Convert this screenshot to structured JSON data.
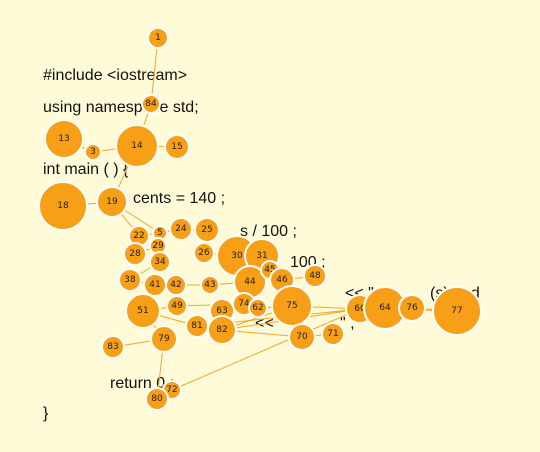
{
  "code_lines": [
    "#include <iostream>",
    "using namespace std;",
    "int main ( ) {",
    "cents = 140 ;",
    "s / 100 ;",
    "100 ;",
    "<< \" d",
    "(s) and",
    "<< \"",
    "\" ;",
    "return 0 ;",
    "}"
  ],
  "colors": {
    "background": "#fffbd9",
    "node_fill": "#f7a017",
    "node_stroke": "#ffffff",
    "edge": "#f5a623",
    "text": "#111111"
  },
  "nodes": [
    {
      "id": "1"
    },
    {
      "id": "84"
    },
    {
      "id": "13"
    },
    {
      "id": "3"
    },
    {
      "id": "14"
    },
    {
      "id": "15"
    },
    {
      "id": "18"
    },
    {
      "id": "19"
    },
    {
      "id": "22"
    },
    {
      "id": "5"
    },
    {
      "id": "24"
    },
    {
      "id": "25"
    },
    {
      "id": "28"
    },
    {
      "id": "29"
    },
    {
      "id": "26"
    },
    {
      "id": "30"
    },
    {
      "id": "31"
    },
    {
      "id": "34"
    },
    {
      "id": "38"
    },
    {
      "id": "41"
    },
    {
      "id": "42"
    },
    {
      "id": "43"
    },
    {
      "id": "44"
    },
    {
      "id": "45"
    },
    {
      "id": "46"
    },
    {
      "id": "48"
    },
    {
      "id": "51"
    },
    {
      "id": "49"
    },
    {
      "id": "74"
    },
    {
      "id": "63"
    },
    {
      "id": "62"
    },
    {
      "id": "75"
    },
    {
      "id": "60"
    },
    {
      "id": "64"
    },
    {
      "id": "76"
    },
    {
      "id": "77"
    },
    {
      "id": "81"
    },
    {
      "id": "82"
    },
    {
      "id": "70"
    },
    {
      "id": "71"
    },
    {
      "id": "83"
    },
    {
      "id": "79"
    },
    {
      "id": "72"
    },
    {
      "id": "80"
    }
  ],
  "edges": [
    [
      "1",
      "84"
    ],
    [
      "84",
      "14"
    ],
    [
      "13",
      "3"
    ],
    [
      "3",
      "14"
    ],
    [
      "14",
      "15"
    ],
    [
      "14",
      "19"
    ],
    [
      "18",
      "19"
    ],
    [
      "19",
      "22"
    ],
    [
      "22",
      "24"
    ],
    [
      "22",
      "28"
    ],
    [
      "24",
      "25"
    ],
    [
      "25",
      "26"
    ],
    [
      "28",
      "29"
    ],
    [
      "29",
      "34"
    ],
    [
      "26",
      "30"
    ],
    [
      "30",
      "31"
    ],
    [
      "34",
      "38"
    ],
    [
      "38",
      "41"
    ],
    [
      "41",
      "42"
    ],
    [
      "42",
      "43"
    ],
    [
      "43",
      "44"
    ],
    [
      "44",
      "45"
    ],
    [
      "45",
      "46"
    ],
    [
      "46",
      "48"
    ],
    [
      "41",
      "51"
    ],
    [
      "51",
      "49"
    ],
    [
      "49",
      "74"
    ],
    [
      "74",
      "63"
    ],
    [
      "63",
      "62"
    ],
    [
      "62",
      "75"
    ],
    [
      "75",
      "60"
    ],
    [
      "60",
      "64"
    ],
    [
      "64",
      "76"
    ],
    [
      "76",
      "77"
    ],
    [
      "60",
      "77"
    ],
    [
      "51",
      "81"
    ],
    [
      "81",
      "82"
    ],
    [
      "82",
      "70"
    ],
    [
      "70",
      "71"
    ],
    [
      "82",
      "75"
    ],
    [
      "51",
      "79"
    ],
    [
      "79",
      "83"
    ],
    [
      "79",
      "80"
    ],
    [
      "80",
      "72"
    ],
    [
      "72",
      "60"
    ],
    [
      "82",
      "60"
    ],
    [
      "81",
      "60"
    ],
    [
      "63",
      "75"
    ],
    [
      "19",
      "5"
    ],
    [
      "5",
      "24"
    ]
  ]
}
